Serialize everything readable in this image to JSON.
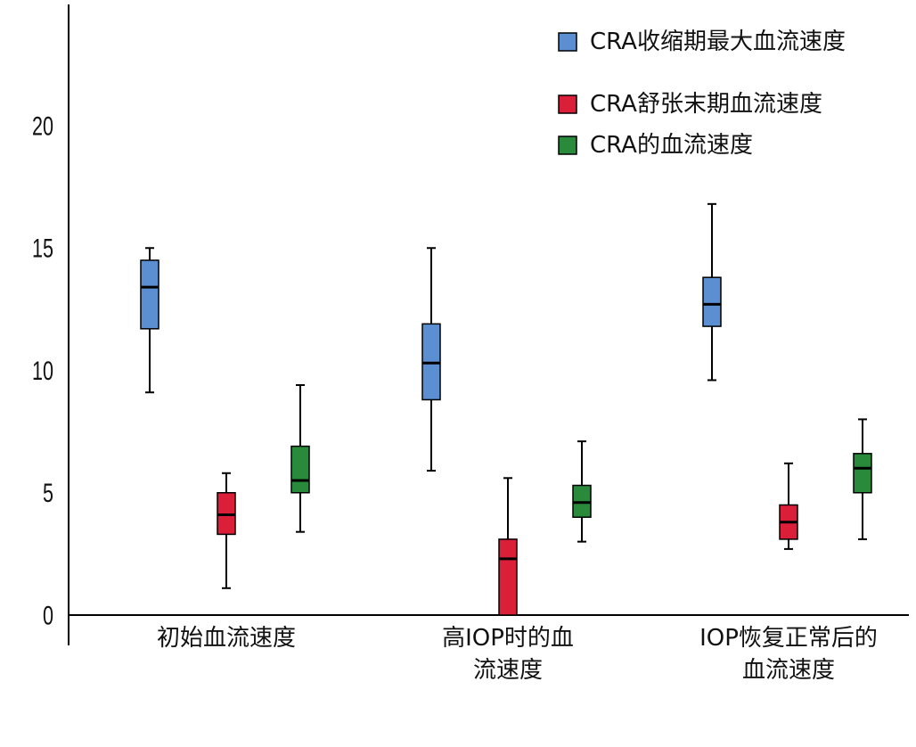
{
  "chart_data": {
    "type": "boxplot",
    "title": "",
    "xlabel": "",
    "ylabel": "",
    "ylim": [
      0,
      25
    ],
    "yticks": [
      0,
      5,
      10,
      15,
      20
    ],
    "ytick_labels": [
      "0",
      "5",
      "10",
      "15",
      "20"
    ],
    "grid": false,
    "legend_position": "top-right",
    "categories": [
      [
        "初始血流速度"
      ],
      [
        "高IOP时的血",
        "流速度"
      ],
      [
        "IOP恢复正常后的",
        "血流速度"
      ]
    ],
    "series": [
      {
        "name": "CRA收缩期最大血流速度",
        "color": "#5b8fd1",
        "boxes": [
          {
            "min": 9.1,
            "q1": 11.7,
            "median": 13.4,
            "q3": 14.5,
            "max": 15.0
          },
          {
            "min": 5.9,
            "q1": 8.8,
            "median": 10.3,
            "q3": 11.9,
            "max": 15.0
          },
          {
            "min": 9.6,
            "q1": 11.8,
            "median": 12.7,
            "q3": 13.8,
            "max": 16.8
          }
        ]
      },
      {
        "name": "CRA舒张末期血流速度",
        "color": "#dc1f39",
        "boxes": [
          {
            "min": 1.1,
            "q1": 3.3,
            "median": 4.1,
            "q3": 5.0,
            "max": 5.8
          },
          {
            "min": 0.0,
            "q1": 0.0,
            "median": 2.3,
            "q3": 3.1,
            "max": 5.6
          },
          {
            "min": 2.7,
            "q1": 3.1,
            "median": 3.8,
            "q3": 4.5,
            "max": 6.2
          }
        ]
      },
      {
        "name": "CRA的血流速度",
        "color": "#2a8a3c",
        "boxes": [
          {
            "min": 3.4,
            "q1": 5.0,
            "median": 5.5,
            "q3": 6.9,
            "max": 9.4
          },
          {
            "min": 3.0,
            "q1": 4.0,
            "median": 4.6,
            "q3": 5.3,
            "max": 7.1
          },
          {
            "min": 3.1,
            "q1": 5.0,
            "median": 6.0,
            "q3": 6.6,
            "max": 8.0
          }
        ]
      }
    ]
  }
}
